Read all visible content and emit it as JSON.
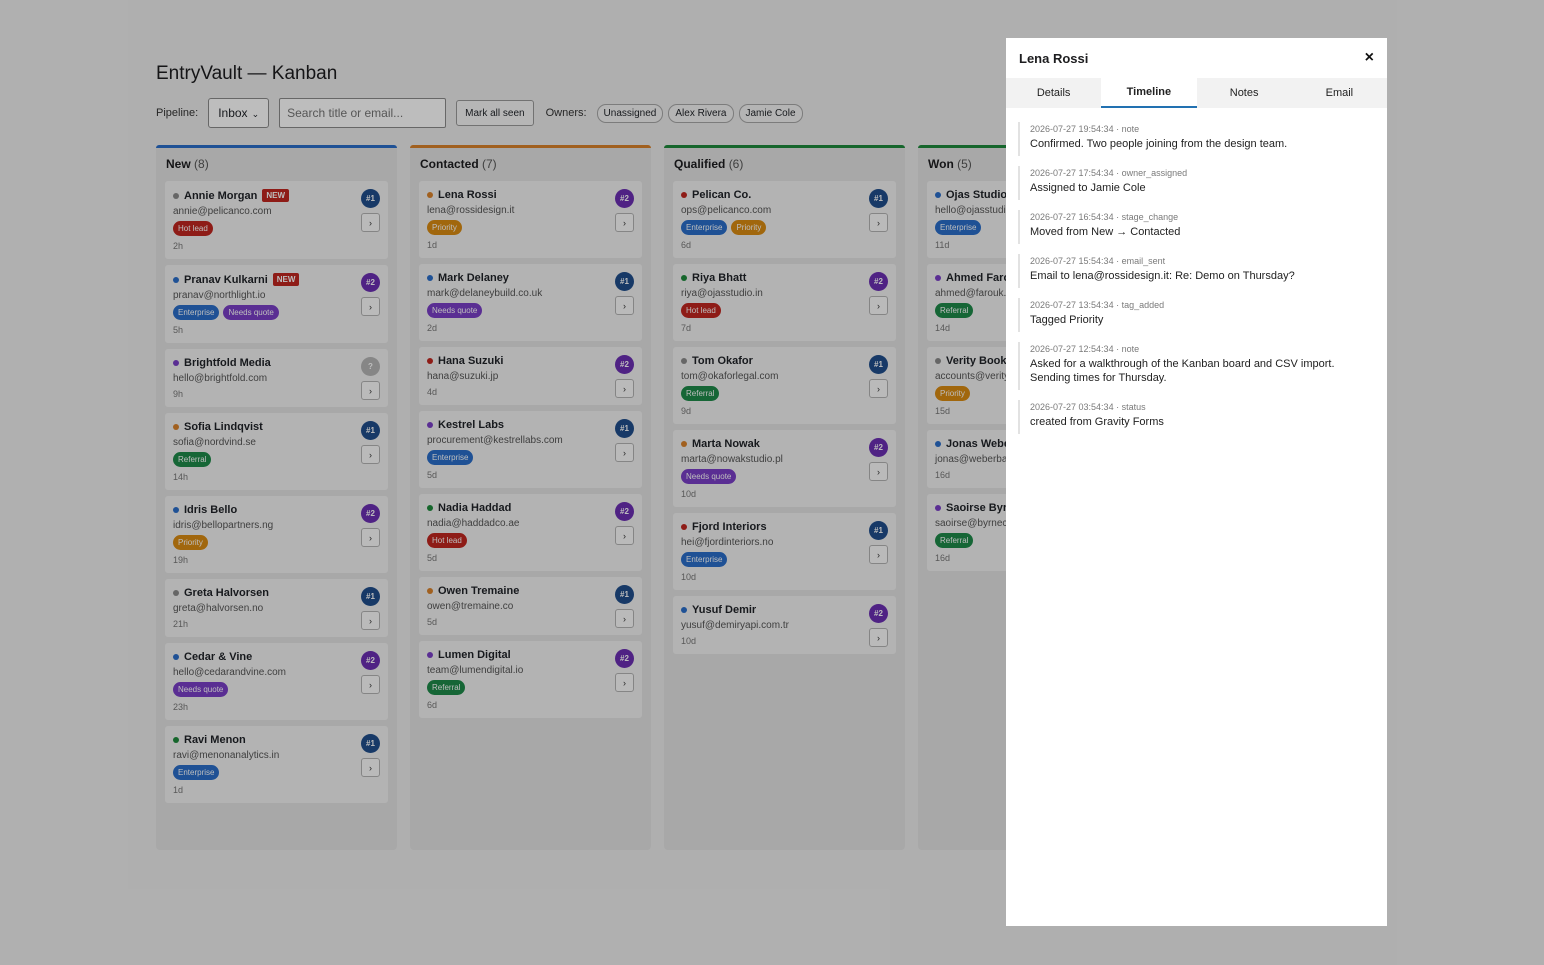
{
  "app": {
    "title": "EntryVault — Kanban",
    "pipeline_label": "Pipeline:",
    "pipeline_value": "Inbox",
    "search_placeholder": "Search title or email...",
    "mark_all_seen": "Mark all seen",
    "owners_label": "Owners:",
    "owners": [
      "Unassigned",
      "Alex Rivera",
      "Jamie Cole"
    ]
  },
  "colors": {
    "new": "#2a6ec9",
    "contacted": "#d9822b",
    "qualified": "#1e8a3c",
    "won": "#1e8a3c",
    "tag_hot": "#c0271f",
    "tag_enterprise": "#2a6ec9",
    "tag_needs_quote": "#7a3fc7",
    "tag_priority": "#d98b12",
    "tag_referral": "#1e8a4a",
    "owner_1": "#1f4e8c",
    "owner_2": "#6b2fb3",
    "owner_unknown": "#b5b5b5"
  },
  "columns": [
    {
      "name": "New",
      "count": "(8)",
      "color": "#2a6ec9",
      "cards": [
        {
          "name": "Annie Morgan",
          "new": "NEW",
          "dot": "#8a8a8a",
          "email": "annie@pelicanco.com",
          "tags": [
            {
              "label": "Hot lead",
              "color": "#c0271f"
            }
          ],
          "age": "2h",
          "owner": "#1",
          "owner_color": "#1f4e8c"
        },
        {
          "name": "Pranav Kulkarni",
          "new": "NEW",
          "dot": "#2a6ec9",
          "email": "pranav@northlight.io",
          "tags": [
            {
              "label": "Enterprise",
              "color": "#2a6ec9"
            },
            {
              "label": "Needs quote",
              "color": "#7a3fc7"
            }
          ],
          "age": "5h",
          "owner": "#2",
          "owner_color": "#6b2fb3"
        },
        {
          "name": "Brightfold Media",
          "dot": "#7a3fc7",
          "email": "hello@brightfold.com",
          "tags": [],
          "age": "9h",
          "owner": "?",
          "owner_color": "#b5b5b5"
        },
        {
          "name": "Sofia Lindqvist",
          "dot": "#d9822b",
          "email": "sofia@nordvind.se",
          "tags": [
            {
              "label": "Referral",
              "color": "#1e8a4a"
            }
          ],
          "age": "14h",
          "owner": "#1",
          "owner_color": "#1f4e8c"
        },
        {
          "name": "Idris Bello",
          "dot": "#2a6ec9",
          "email": "idris@bellopartners.ng",
          "tags": [
            {
              "label": "Priority",
              "color": "#d98b12"
            }
          ],
          "age": "19h",
          "owner": "#2",
          "owner_color": "#6b2fb3"
        },
        {
          "name": "Greta Halvorsen",
          "dot": "#8a8a8a",
          "email": "greta@halvorsen.no",
          "tags": [],
          "age": "21h",
          "owner": "#1",
          "owner_color": "#1f4e8c"
        },
        {
          "name": "Cedar & Vine",
          "dot": "#2a6ec9",
          "email": "hello@cedarandvine.com",
          "tags": [
            {
              "label": "Needs quote",
              "color": "#7a3fc7"
            }
          ],
          "age": "23h",
          "owner": "#2",
          "owner_color": "#6b2fb3"
        },
        {
          "name": "Ravi Menon",
          "dot": "#1e8a3c",
          "email": "ravi@menonanalytics.in",
          "tags": [
            {
              "label": "Enterprise",
              "color": "#2a6ec9"
            }
          ],
          "age": "1d",
          "owner": "#1",
          "owner_color": "#1f4e8c"
        }
      ]
    },
    {
      "name": "Contacted",
      "count": "(7)",
      "color": "#d9822b",
      "cards": [
        {
          "name": "Lena Rossi",
          "dot": "#d9822b",
          "email": "lena@rossidesign.it",
          "tags": [
            {
              "label": "Priority",
              "color": "#d98b12"
            }
          ],
          "age": "1d",
          "owner": "#2",
          "owner_color": "#6b2fb3"
        },
        {
          "name": "Mark Delaney",
          "dot": "#2a6ec9",
          "email": "mark@delaneybuild.co.uk",
          "tags": [
            {
              "label": "Needs quote",
              "color": "#7a3fc7"
            }
          ],
          "age": "2d",
          "owner": "#1",
          "owner_color": "#1f4e8c"
        },
        {
          "name": "Hana Suzuki",
          "dot": "#c0271f",
          "email": "hana@suzuki.jp",
          "tags": [],
          "age": "4d",
          "owner": "#2",
          "owner_color": "#6b2fb3"
        },
        {
          "name": "Kestrel Labs",
          "dot": "#7a3fc7",
          "email": "procurement@kestrellabs.com",
          "tags": [
            {
              "label": "Enterprise",
              "color": "#2a6ec9"
            }
          ],
          "age": "5d",
          "owner": "#1",
          "owner_color": "#1f4e8c"
        },
        {
          "name": "Nadia Haddad",
          "dot": "#1e8a3c",
          "email": "nadia@haddadco.ae",
          "tags": [
            {
              "label": "Hot lead",
              "color": "#c0271f"
            }
          ],
          "age": "5d",
          "owner": "#2",
          "owner_color": "#6b2fb3"
        },
        {
          "name": "Owen Tremaine",
          "dot": "#d9822b",
          "email": "owen@tremaine.co",
          "tags": [],
          "age": "5d",
          "owner": "#1",
          "owner_color": "#1f4e8c"
        },
        {
          "name": "Lumen Digital",
          "dot": "#7a3fc7",
          "email": "team@lumendigital.io",
          "tags": [
            {
              "label": "Referral",
              "color": "#1e8a4a"
            }
          ],
          "age": "6d",
          "owner": "#2",
          "owner_color": "#6b2fb3"
        }
      ]
    },
    {
      "name": "Qualified",
      "count": "(6)",
      "color": "#1e8a3c",
      "cards": [
        {
          "name": "Pelican Co.",
          "dot": "#c0271f",
          "email": "ops@pelicanco.com",
          "tags": [
            {
              "label": "Enterprise",
              "color": "#2a6ec9"
            },
            {
              "label": "Priority",
              "color": "#d98b12"
            }
          ],
          "age": "6d",
          "owner": "#1",
          "owner_color": "#1f4e8c"
        },
        {
          "name": "Riya Bhatt",
          "dot": "#1e8a3c",
          "email": "riya@ojasstudio.in",
          "tags": [
            {
              "label": "Hot lead",
              "color": "#c0271f"
            }
          ],
          "age": "7d",
          "owner": "#2",
          "owner_color": "#6b2fb3"
        },
        {
          "name": "Tom Okafor",
          "dot": "#8a8a8a",
          "email": "tom@okaforlegal.com",
          "tags": [
            {
              "label": "Referral",
              "color": "#1e8a4a"
            }
          ],
          "age": "9d",
          "owner": "#1",
          "owner_color": "#1f4e8c"
        },
        {
          "name": "Marta Nowak",
          "dot": "#d9822b",
          "email": "marta@nowakstudio.pl",
          "tags": [
            {
              "label": "Needs quote",
              "color": "#7a3fc7"
            }
          ],
          "age": "10d",
          "owner": "#2",
          "owner_color": "#6b2fb3"
        },
        {
          "name": "Fjord Interiors",
          "dot": "#c0271f",
          "email": "hei@fjordinteriors.no",
          "tags": [
            {
              "label": "Enterprise",
              "color": "#2a6ec9"
            }
          ],
          "age": "10d",
          "owner": "#1",
          "owner_color": "#1f4e8c"
        },
        {
          "name": "Yusuf Demir",
          "dot": "#2a6ec9",
          "email": "yusuf@demiryapi.com.tr",
          "tags": [],
          "age": "10d",
          "owner": "#2",
          "owner_color": "#6b2fb3"
        }
      ]
    },
    {
      "name": "Won",
      "count": "(5)",
      "color": "#1e8a3c",
      "cards": [
        {
          "name": "Ojas Studio",
          "dot": "#2a6ec9",
          "email": "hello@ojasstudio",
          "tags": [
            {
              "label": "Enterprise",
              "color": "#2a6ec9"
            }
          ],
          "age": "11d",
          "owner": "",
          "owner_color": ""
        },
        {
          "name": "Ahmed Farou",
          "dot": "#7a3fc7",
          "email": "ahmed@farouk.m",
          "tags": [
            {
              "label": "Referral",
              "color": "#1e8a4a"
            }
          ],
          "age": "14d",
          "owner": "",
          "owner_color": ""
        },
        {
          "name": "Verity Books",
          "dot": "#8a8a8a",
          "email": "accounts@verity",
          "tags": [
            {
              "label": "Priority",
              "color": "#d98b12"
            }
          ],
          "age": "15d",
          "owner": "",
          "owner_color": ""
        },
        {
          "name": "Jonas Weber",
          "dot": "#2a6ec9",
          "email": "jonas@weberbau",
          "tags": [],
          "age": "16d",
          "owner": "",
          "owner_color": ""
        },
        {
          "name": "Saoirse Byrne",
          "dot": "#7a3fc7",
          "email": "saoirse@byrnecr",
          "tags": [
            {
              "label": "Referral",
              "color": "#1e8a4a"
            }
          ],
          "age": "16d",
          "owner": "",
          "owner_color": ""
        }
      ]
    }
  ],
  "panel": {
    "title": "Lena Rossi",
    "close": "×",
    "tabs": [
      "Details",
      "Timeline",
      "Notes",
      "Email"
    ],
    "active_tab": "Timeline",
    "timeline": [
      {
        "meta": "2026-07-27 19:54:34 · note",
        "text": "Confirmed. Two people joining from the design team."
      },
      {
        "meta": "2026-07-27 17:54:34 · owner_assigned",
        "text": "Assigned to Jamie Cole"
      },
      {
        "meta": "2026-07-27 16:54:34 · stage_change",
        "text": "Moved from New → Contacted"
      },
      {
        "meta": "2026-07-27 15:54:34 · email_sent",
        "text": "Email to lena@rossidesign.it: Re: Demo on Thursday?"
      },
      {
        "meta": "2026-07-27 13:54:34 · tag_added",
        "text": "Tagged Priority"
      },
      {
        "meta": "2026-07-27 12:54:34 · note",
        "text": "Asked for a walkthrough of the Kanban board and CSV import. Sending times for Thursday."
      },
      {
        "meta": "2026-07-27 03:54:34 · status",
        "text": "created from Gravity Forms"
      }
    ]
  }
}
